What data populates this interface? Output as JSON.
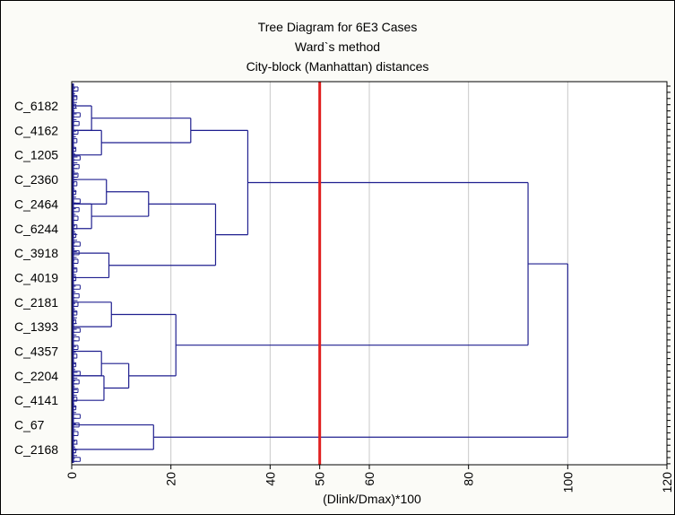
{
  "chart_data": {
    "type": "dendrogram",
    "title": "Tree Diagram for 6E3 Cases",
    "subtitle_1": "Ward`s method",
    "subtitle_2": "City-block (Manhattan) distances",
    "xlabel": "(Dlink/Dmax)*100",
    "ylabel": "",
    "xlim": [
      0,
      120
    ],
    "x_ticks": [
      "0",
      "20",
      "40",
      "50",
      "60",
      "80",
      "100",
      "120"
    ],
    "y_labels": [
      "C_6182",
      "C_4162",
      "C_1205",
      "C_2360",
      "C_2464",
      "C_6244",
      "C_3918",
      "C_4019",
      "C_2181",
      "C_1393",
      "C_4357",
      "C_2204",
      "C_4141",
      "C_67",
      "C_2168"
    ],
    "grid": true,
    "cutoff_line": {
      "value": 50,
      "color": "#e02020"
    },
    "tree_color": "#1f1f8f",
    "merges": [
      {
        "id": "A1",
        "children": [
          0,
          1
        ],
        "height": 4
      },
      {
        "id": "A2",
        "children": [
          1,
          2
        ],
        "height": 6
      },
      {
        "id": "A",
        "children": [
          "A1",
          "A2"
        ],
        "height": 24
      },
      {
        "id": "B1",
        "children": [
          3,
          4
        ],
        "height": 7
      },
      {
        "id": "B2",
        "children": [
          4,
          5
        ],
        "height": 4
      },
      {
        "id": "B",
        "children": [
          "B1",
          "B2"
        ],
        "height": 15.5
      },
      {
        "id": "C",
        "children": [
          6,
          7
        ],
        "height": 7.5
      },
      {
        "id": "BC",
        "children": [
          "B",
          "C"
        ],
        "height": 29
      },
      {
        "id": "ABC",
        "children": [
          "A",
          "BC"
        ],
        "height": 35.5
      },
      {
        "id": "D1",
        "children": [
          8,
          9
        ],
        "height": 8
      },
      {
        "id": "D2",
        "children": [
          10,
          11
        ],
        "height": 6
      },
      {
        "id": "D3",
        "children": [
          11,
          12
        ],
        "height": 6.5
      },
      {
        "id": "D4",
        "children": [
          "D2",
          "D3"
        ],
        "height": 11.5
      },
      {
        "id": "D",
        "children": [
          "D1",
          "D4"
        ],
        "height": 21
      },
      {
        "id": "ABCD",
        "children": [
          "ABC",
          "D"
        ],
        "height": 92
      },
      {
        "id": "E",
        "children": [
          13,
          14
        ],
        "height": 16.5
      },
      {
        "id": "ROOT",
        "children": [
          "ABCD",
          "E"
        ],
        "height": 100
      }
    ]
  }
}
